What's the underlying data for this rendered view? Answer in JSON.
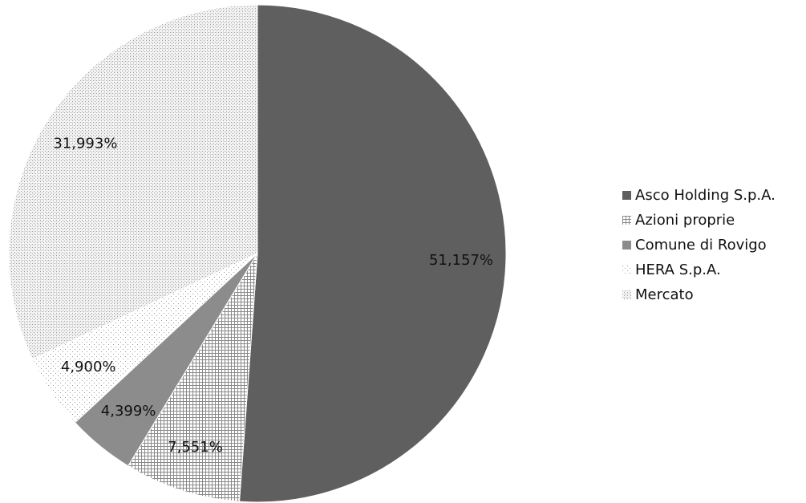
{
  "chart_data": {
    "type": "pie",
    "title": "",
    "legend_position": "right",
    "start_angle_deg": 0,
    "direction": "clockwise",
    "slices": [
      {
        "name": "Asco Holding S.p.A.",
        "value": 51.157,
        "label": "51,157%",
        "color": "#5f5f5f",
        "pattern": "solid",
        "label_color": "#ffffff"
      },
      {
        "name": "Azioni proprie",
        "value": 7.551,
        "label": "7,551%",
        "color": "#8a8a8a",
        "pattern": "grid",
        "label_color": "#111111"
      },
      {
        "name": "Comune di Rovigo",
        "value": 4.399,
        "label": "4,399%",
        "color": "#8c8c8c",
        "pattern": "solid",
        "label_color": "#111111"
      },
      {
        "name": "HERA S.p.A.",
        "value": 4.9,
        "label": "4,900%",
        "color": "#c8c8c8",
        "pattern": "sparse-dots",
        "label_color": "#111111"
      },
      {
        "name": "Mercato",
        "value": 31.993,
        "label": "31,993%",
        "color": "#bdbdbd",
        "pattern": "dense-dots",
        "label_color": "#111111"
      }
    ]
  }
}
